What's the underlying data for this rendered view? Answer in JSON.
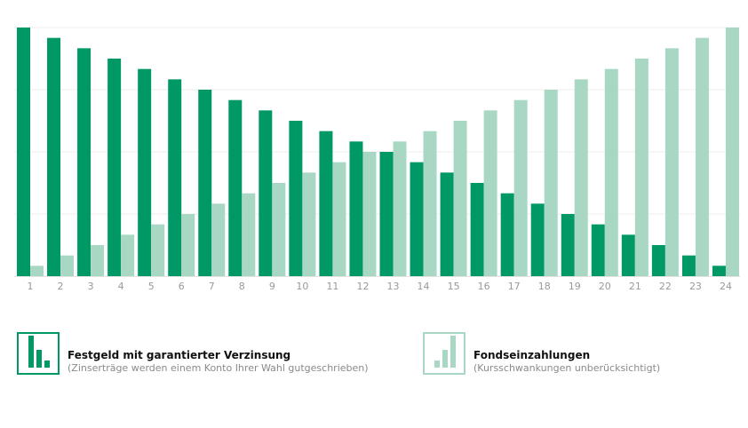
{
  "chart_data": {
    "type": "bar",
    "categories": [
      "1",
      "2",
      "3",
      "4",
      "5",
      "6",
      "7",
      "8",
      "9",
      "10",
      "11",
      "12",
      "13",
      "14",
      "15",
      "16",
      "17",
      "18",
      "19",
      "20",
      "21",
      "22",
      "23",
      "24"
    ],
    "series": [
      {
        "name": "Festgeld mit garantierter Verzinsung",
        "color": "#009966",
        "values": [
          24,
          23,
          22,
          21,
          20,
          19,
          18,
          17,
          16,
          15,
          14,
          13,
          12,
          11,
          10,
          9,
          8,
          7,
          6,
          5,
          4,
          3,
          2,
          1
        ]
      },
      {
        "name": "Fondseinzahlungen",
        "color": "#a8d8c4",
        "values": [
          1,
          2,
          3,
          4,
          5,
          6,
          7,
          8,
          9,
          10,
          11,
          12,
          13,
          14,
          15,
          16,
          17,
          18,
          19,
          20,
          21,
          22,
          23,
          24
        ]
      }
    ],
    "ylim": [
      0,
      24
    ],
    "grid": true,
    "legend_position": "bottom"
  },
  "legend": {
    "items": [
      {
        "title": "Festgeld mit garantierter Verzinsung",
        "subtitle": "(Zinserträge werden einem Konto Ihrer Wahl gutgeschrieben)",
        "icon": "declining-bars-icon",
        "color": "#009966"
      },
      {
        "title": "Fondseinzahlungen",
        "subtitle": "(Kursschwankungen unberücksichtigt)",
        "icon": "rising-bars-icon",
        "color": "#a8d8c4"
      }
    ]
  }
}
